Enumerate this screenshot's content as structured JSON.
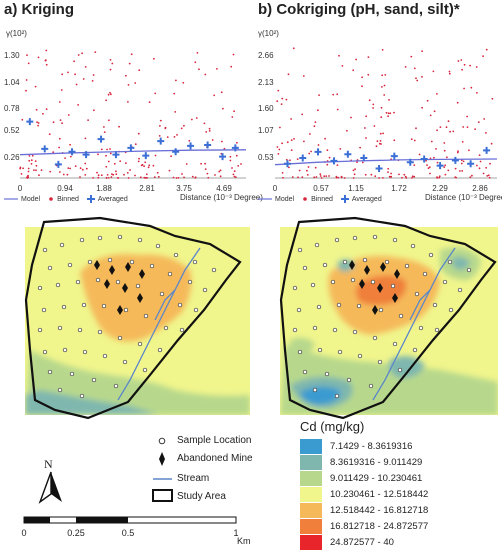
{
  "panels": {
    "left_title": "a) Kriging",
    "right_title": "b) Cokriging (pH, sand, silt)*"
  },
  "chart_data": [
    {
      "type": "scatter",
      "title": "a) Kriging",
      "ylabel": "γ(10²)",
      "xlabel": "Distance (10⁻³ Degree)",
      "y_ticks": [
        "1.30",
        "1.04",
        "0.78",
        "0.52",
        "0.26"
      ],
      "x_ticks": [
        "0",
        "0.94",
        "1.88",
        "2.81",
        "3.75",
        "4.69"
      ],
      "xlim": [
        0,
        5.3
      ],
      "ylim": [
        0,
        1.42
      ],
      "series": [
        {
          "name": "Model",
          "type": "line",
          "x": [
            0,
            1.0,
            2.0,
            3.0,
            4.0,
            5.3
          ],
          "y": [
            0.24,
            0.255,
            0.268,
            0.278,
            0.286,
            0.29
          ]
        },
        {
          "name": "Averaged",
          "type": "points",
          "x": [
            0.23,
            0.58,
            0.9,
            1.22,
            1.55,
            1.9,
            2.25,
            2.6,
            2.95,
            3.3,
            3.65,
            4.0,
            4.4,
            4.75,
            5.05
          ],
          "y": [
            0.58,
            0.3,
            0.14,
            0.27,
            0.24,
            0.4,
            0.24,
            0.31,
            0.23,
            0.38,
            0.27,
            0.33,
            0.34,
            0.22,
            0.31
          ]
        }
      ],
      "legend": [
        "Model",
        "Binned",
        "Averaged"
      ]
    },
    {
      "type": "scatter",
      "title": "b) Cokriging (pH, sand, silt)*",
      "ylabel": "γ(10²)",
      "xlabel": "Distance (10⁻³ Degree)",
      "y_ticks": [
        "2.66",
        "2.13",
        "1.60",
        "1.07",
        "0.53"
      ],
      "x_ticks": [
        "0",
        "0.57",
        "1.15",
        "1.72",
        "2.29",
        "2.86"
      ],
      "xlim": [
        0,
        3.2
      ],
      "ylim": [
        0,
        2.9
      ],
      "series": [
        {
          "name": "Model",
          "type": "line",
          "x": [
            0,
            0.6,
            1.2,
            1.8,
            2.4,
            3.2
          ],
          "y": [
            0.28,
            0.33,
            0.36,
            0.38,
            0.39,
            0.4
          ]
        },
        {
          "name": "Averaged",
          "type": "points",
          "x": [
            0.18,
            0.4,
            0.62,
            0.85,
            1.05,
            1.28,
            1.5,
            1.72,
            1.95,
            2.15,
            2.38,
            2.6,
            2.82,
            3.05
          ],
          "y": [
            0.3,
            0.42,
            0.55,
            0.36,
            0.5,
            0.42,
            0.2,
            0.46,
            0.33,
            0.4,
            0.26,
            0.37,
            0.3,
            0.58
          ]
        }
      ],
      "legend": [
        "Model",
        "Binned",
        "Averaged"
      ]
    }
  ],
  "map_legend": {
    "sample_location": "Sample Location",
    "abandoned_mine": "Abandoned Mine",
    "stream": "Stream",
    "study_area": "Study Area"
  },
  "cd_legend": {
    "title": "Cd (mg/kg)",
    "classes": [
      {
        "label": "7.1429 - 8.3619316",
        "color": "#3a9bd0"
      },
      {
        "label": "8.3619316 - 9.011429",
        "color": "#7fb7ae"
      },
      {
        "label": "9.011429 - 10.230461",
        "color": "#b7d88c"
      },
      {
        "label": "10.230461 - 12.518442",
        "color": "#f0f58c"
      },
      {
        "label": "12.518442 - 16.812718",
        "color": "#f5b95a"
      },
      {
        "label": "16.812718 - 24.872577",
        "color": "#ef7f3a"
      },
      {
        "label": "24.872577 - 40",
        "color": "#e8252a"
      }
    ]
  },
  "north_label": "N",
  "scale_bar": {
    "labels": [
      "0",
      "0.25",
      "0.5",
      "1"
    ],
    "unit": "Km"
  }
}
